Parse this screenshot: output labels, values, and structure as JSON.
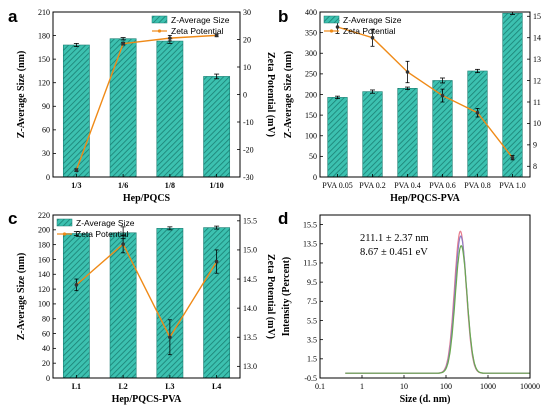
{
  "colors": {
    "bar_fill": "#3cc1b0",
    "bar_hatch": "#1a7f73",
    "line": "#ef8a17",
    "err": "#000000",
    "dist1": "#e77c8d",
    "dist2": "#8e7cc3",
    "dist3": "#6aa84f"
  },
  "chart_data": [
    {
      "panel": "a",
      "type": "bar",
      "categories": [
        "1/3",
        "1/6",
        "1/8",
        "1/10"
      ],
      "xlabel": "Hep/PQCS",
      "ylabel": "Z-Average Size (nm)",
      "ylim": [
        0,
        210
      ],
      "yticks": [
        0,
        30,
        60,
        90,
        120,
        150,
        180,
        210
      ],
      "y2label": "Zeta Potential (mV)",
      "y2lim": [
        -30,
        30
      ],
      "y2ticks": [
        -30,
        -20,
        -10,
        0,
        10,
        20,
        30
      ],
      "series": [
        {
          "name": "Z-Average Size",
          "values": [
            168,
            176,
            173,
            128
          ],
          "errors": [
            2,
            1.5,
            3,
            3
          ]
        },
        {
          "name": "Zeta Potential",
          "axis": "right",
          "values": [
            -27.5,
            18.5,
            20.5,
            21.5
          ],
          "errors": [
            0.5,
            0.5,
            1.0,
            0.5
          ]
        }
      ],
      "legend": "top-right"
    },
    {
      "panel": "b",
      "type": "bar",
      "categories": [
        "PVA 0.05",
        "PVA 0.2",
        "PVA 0.4",
        "PVA 0.6",
        "PVA 0.8",
        "PVA 1.0"
      ],
      "xlabel": "Hep/PQCS-PVA",
      "ylabel": "Z-Average Size (nm)",
      "ylim": [
        0,
        400
      ],
      "yticks": [
        0,
        50,
        100,
        150,
        200,
        250,
        300,
        350,
        400
      ],
      "y2label": "Zeta Potential (mV)",
      "y2lim": [
        7.5,
        15.2
      ],
      "y2ticks": [
        8,
        9,
        10,
        11,
        12,
        13,
        14,
        15
      ],
      "series": [
        {
          "name": "Z-Average Size",
          "values": [
            193,
            207,
            215,
            234,
            257,
            397
          ],
          "errors": [
            3,
            4,
            3,
            6,
            4,
            3
          ]
        },
        {
          "name": "Zeta Potential",
          "axis": "right",
          "values": [
            14.5,
            14.0,
            12.4,
            11.3,
            10.5,
            8.4
          ],
          "errors": [
            0.3,
            0.4,
            0.5,
            0.3,
            0.2,
            0.1
          ]
        }
      ],
      "legend": "top-left"
    },
    {
      "panel": "c",
      "type": "bar",
      "categories": [
        "L1",
        "L2",
        "L3",
        "L4"
      ],
      "xlabel": "Hep/PQCS-PVA",
      "ylabel": "Z-Average Size (nm)",
      "ylim": [
        0,
        220
      ],
      "yticks": [
        0,
        20,
        40,
        60,
        80,
        100,
        120,
        140,
        160,
        180,
        200,
        220
      ],
      "y2label": "Zeta Potential (mV)",
      "y2lim": [
        12.8,
        15.6
      ],
      "y2ticks": [
        13.0,
        13.5,
        14.0,
        14.5,
        15.0,
        15.5
      ],
      "series": [
        {
          "name": "Z-Average Size",
          "values": [
            195,
            196,
            202,
            203
          ],
          "errors": [
            2.5,
            8,
            2,
            2
          ]
        },
        {
          "name": "Zeta Potential",
          "axis": "right",
          "values": [
            14.4,
            15.1,
            13.5,
            14.8
          ],
          "errors": [
            0.1,
            0.15,
            0.3,
            0.2
          ]
        }
      ],
      "legend": "top-left"
    },
    {
      "panel": "d",
      "type": "line",
      "xlabel": "Size (d. nm)",
      "xscale": "log",
      "xlim": [
        0.1,
        10000
      ],
      "xticks": [
        "0.1",
        "1",
        "10",
        "100",
        "1000",
        "10000"
      ],
      "ylabel": "Intensity (Percent)",
      "ylim": [
        -0.5,
        16.5
      ],
      "yticks": [
        "-0.5",
        "1.5",
        "3.5",
        "5.5",
        "7.5",
        "9.5",
        "11.5",
        "13.5",
        "15.5"
      ],
      "series": [
        {
          "peak": 14.8,
          "center": 220
        },
        {
          "peak": 14.3,
          "center": 225
        },
        {
          "peak": 13.3,
          "center": 230
        }
      ],
      "annotations": [
        "211.1 ± 2.37 nm",
        "8.67 ± 0.451 eV"
      ]
    }
  ]
}
